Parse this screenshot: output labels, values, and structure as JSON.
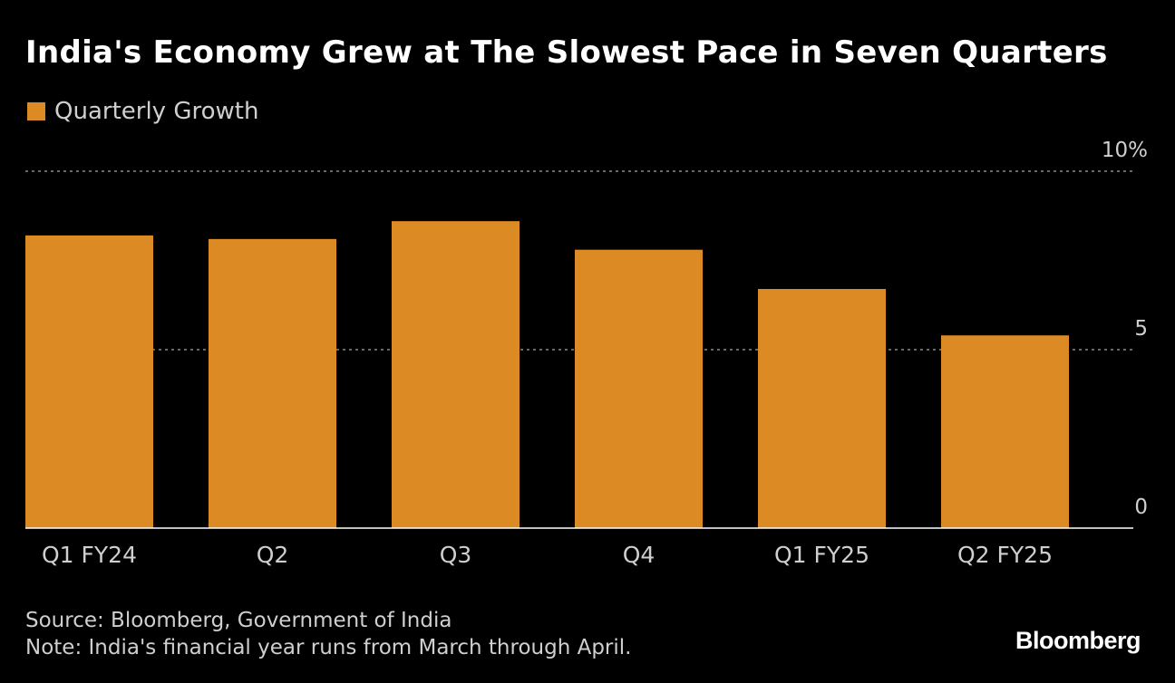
{
  "header": {
    "title": "India's Economy Grew at The Slowest Pace in Seven Quarters"
  },
  "legend": {
    "label": "Quarterly Growth"
  },
  "chart_data": {
    "type": "bar",
    "title": "India's Economy Grew at The Slowest Pace in Seven Quarters",
    "categories": [
      "Q1 FY24",
      "Q2",
      "Q3",
      "Q4",
      "Q1 FY25",
      "Q2 FY25"
    ],
    "series": [
      {
        "name": "Quarterly Growth",
        "values": [
          8.2,
          8.1,
          8.6,
          7.8,
          6.7,
          5.4
        ]
      }
    ],
    "xlabel": "",
    "ylabel": "",
    "ylim": [
      0,
      10
    ],
    "yticks": [
      0,
      5,
      10
    ],
    "ytick_labels": [
      "0",
      "5",
      "10%"
    ],
    "legend_position": "top-left",
    "grid": true
  },
  "footer": {
    "source": "Source: Bloomberg, Government of India",
    "note": "Note: India's financial year runs from March through April."
  },
  "branding": {
    "logo_text": "Bloomberg"
  },
  "colors": {
    "background": "#000000",
    "bar": "#dc8a23",
    "text": "#ffffff",
    "muted_text": "#cfcfcf",
    "grid": "#8a8a8a"
  }
}
